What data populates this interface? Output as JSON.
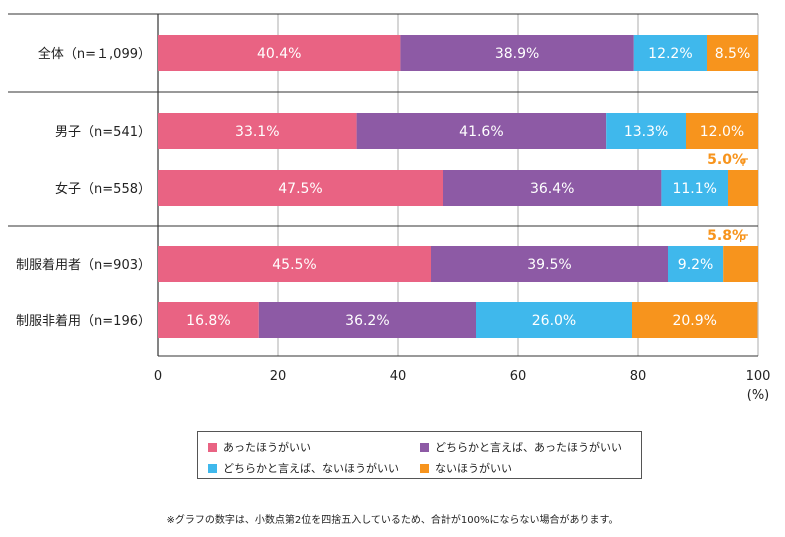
{
  "chart_data": {
    "type": "bar",
    "orientation": "horizontal",
    "stacked": true,
    "categories": [
      "全体（n=１,099）",
      "男子（n=541）",
      "女子（n=558）",
      "制服着用者（n=903）",
      "制服非着用（n=196）"
    ],
    "series": [
      {
        "name": "あったほうがいい",
        "values": [
          40.4,
          33.1,
          47.5,
          45.5,
          16.8
        ],
        "labels": [
          "40.4%",
          "33.1%",
          "47.5%",
          "45.5%",
          "16.8%"
        ],
        "color": "#e96383"
      },
      {
        "name": "どちらかと言えば、あったほうがいい",
        "values": [
          38.9,
          41.6,
          36.4,
          39.5,
          36.2
        ],
        "labels": [
          "38.9%",
          "41.6%",
          "36.4%",
          "39.5%",
          "36.2%"
        ],
        "color": "#8d5aa5"
      },
      {
        "name": "どちらかと言えば、ないほうがいい",
        "values": [
          12.2,
          13.3,
          11.1,
          9.2,
          26.0
        ],
        "labels": [
          "12.2%",
          "13.3%",
          "11.1%",
          "9.2%",
          "26.0%"
        ],
        "color": "#3fb8ec"
      },
      {
        "name": "ないほうがいい",
        "values": [
          8.5,
          12.0,
          5.0,
          5.8,
          20.9
        ],
        "labels": [
          "8.5%",
          "12.0%",
          "5.0%",
          "5.8%",
          "20.9%"
        ],
        "color": "#f7941d"
      }
    ],
    "xlim": [
      0,
      100
    ],
    "xticks": [
      "0",
      "20",
      "40",
      "60",
      "80",
      "100"
    ],
    "xunit": "(%)",
    "grid": true,
    "legend_position": "bottom"
  },
  "note": "※グラフの数字は、小数点第2位を四捨五入しているため、合計が100%にならない場合があります。"
}
